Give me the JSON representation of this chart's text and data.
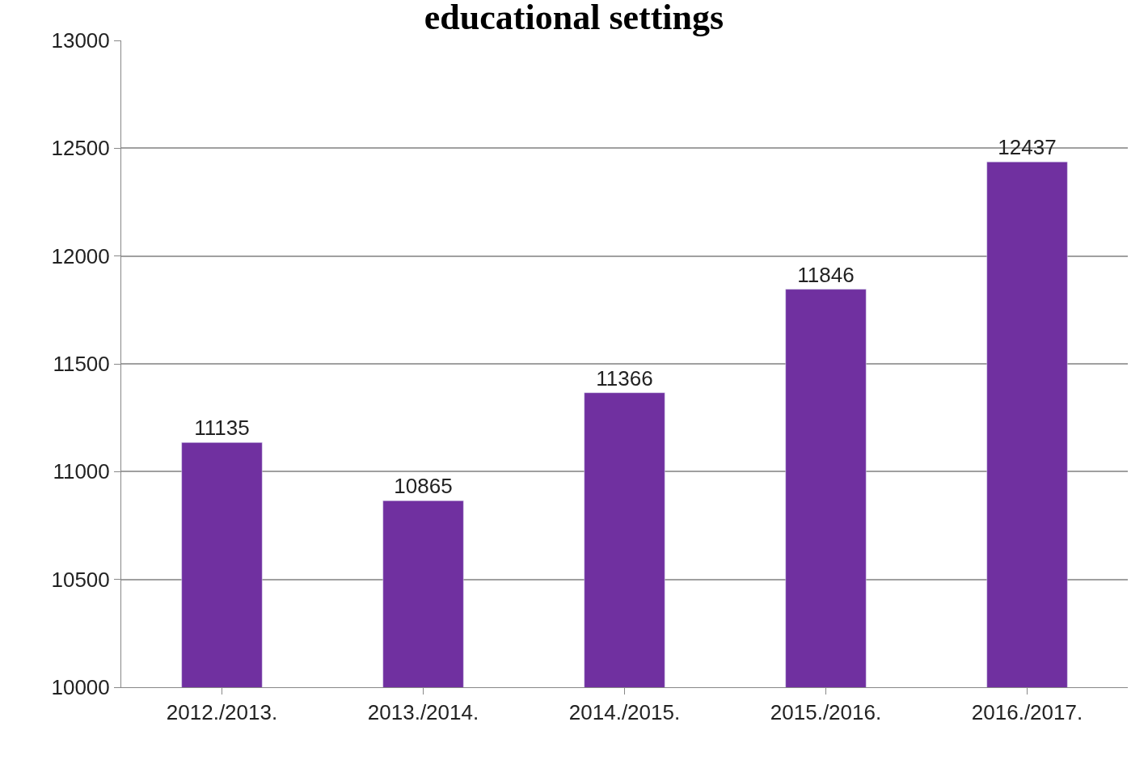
{
  "chart_data": {
    "type": "bar",
    "title": "educational settings",
    "categories": [
      "2012./2013.",
      "2013./2014.",
      "2014./2015.",
      "2015./2016.",
      "2016./2017."
    ],
    "values": [
      11135,
      10865,
      11366,
      11846,
      12437
    ],
    "color": "#7030a0",
    "ylim": [
      10000,
      13000
    ],
    "yticks": [
      10000,
      10500,
      11000,
      11500,
      12000,
      12500,
      13000
    ],
    "grid": "y",
    "data_labels": true
  }
}
